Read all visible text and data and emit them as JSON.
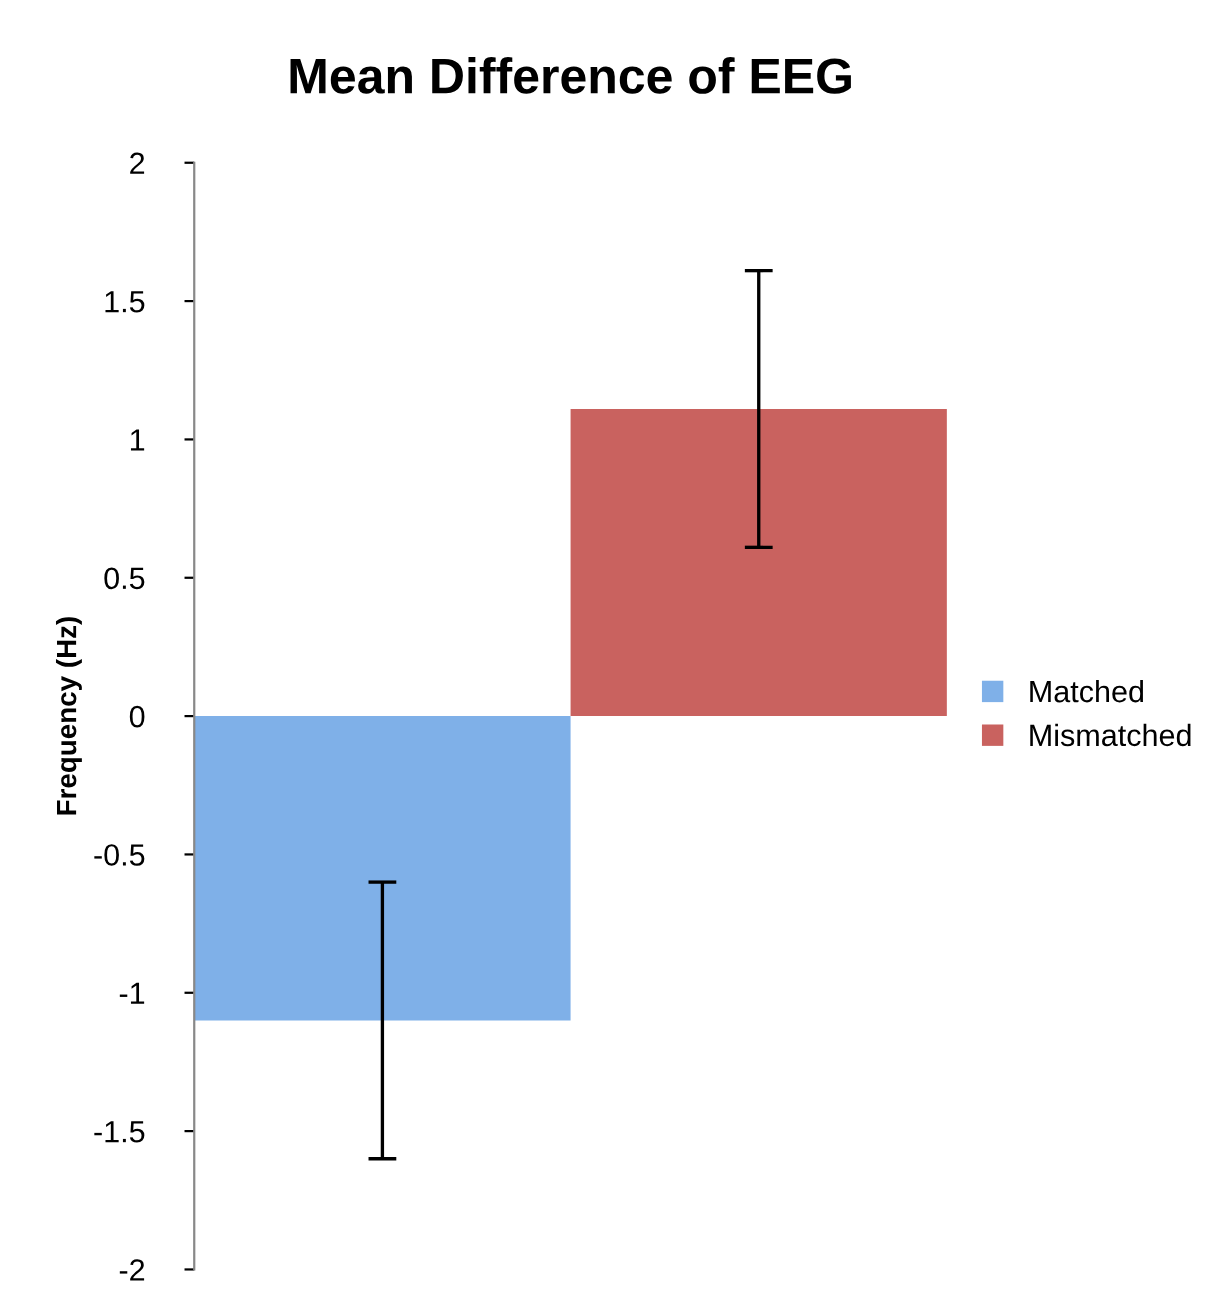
{
  "chart_data": {
    "type": "bar",
    "title": "Mean Difference of EEG",
    "ylabel": "Frequency (Hz)",
    "categories": [
      null
    ],
    "series": [
      {
        "name": "Matched",
        "color": "#7fb0e8",
        "values": [
          -1.1
        ],
        "errors": [
          0.5
        ]
      },
      {
        "name": "Mismatched",
        "color": "#c9625f",
        "values": [
          1.11
        ],
        "errors": [
          0.5
        ]
      }
    ],
    "ylim": [
      -2,
      2
    ],
    "yticks": [
      -2,
      -1.5,
      -1,
      -0.5,
      0,
      0.5,
      1,
      1.5,
      2
    ],
    "grid": false,
    "legend": "right"
  }
}
